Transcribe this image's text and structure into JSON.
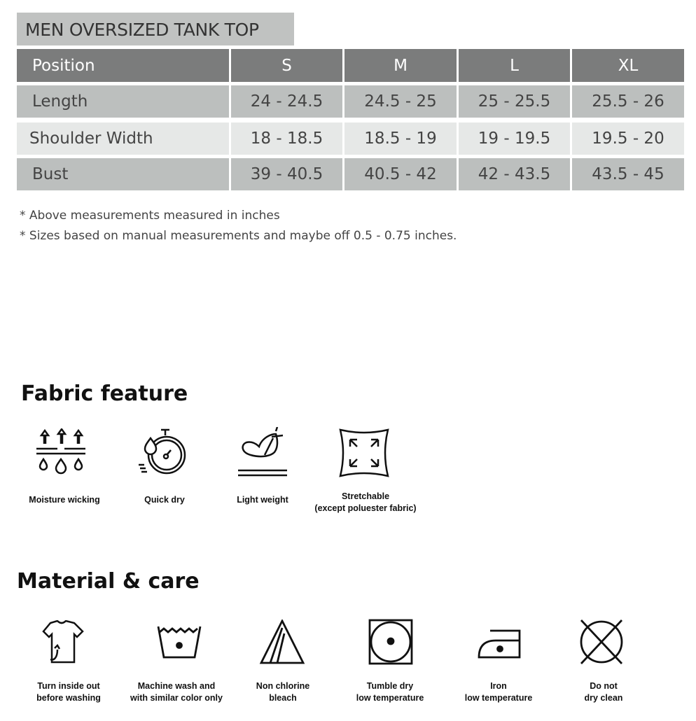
{
  "title": "MEN OVERSIZED TANK TOP",
  "table": {
    "headers": [
      "Position",
      "S",
      "M",
      "L",
      "XL"
    ],
    "rows": [
      {
        "label": "Length",
        "values": [
          "24 - 24.5",
          "24.5 - 25",
          "25 - 25.5",
          "25.5 - 26"
        ]
      },
      {
        "label": "Shoulder Width",
        "values": [
          "18 - 18.5",
          "18.5 - 19",
          "19 - 19.5",
          "19.5 - 20"
        ]
      },
      {
        "label": "Bust",
        "values": [
          "39 - 40.5",
          "40.5 - 42",
          "42 - 43.5",
          "43.5 - 45"
        ]
      }
    ]
  },
  "notes": [
    "* Above measurements measured in inches",
    "* Sizes based on manual measurements and maybe off 0.5 - 0.75 inches."
  ],
  "fabric": {
    "heading": "Fabric feature",
    "items": [
      {
        "icon": "moisture-wicking-icon",
        "lines": [
          "Moisture wicking"
        ]
      },
      {
        "icon": "quick-dry-icon",
        "lines": [
          "Quick dry"
        ]
      },
      {
        "icon": "light-weight-icon",
        "lines": [
          "Light weight"
        ]
      },
      {
        "icon": "stretchable-icon",
        "lines": [
          "Stretchable",
          "(except poluester fabric)"
        ]
      }
    ]
  },
  "care": {
    "heading": "Material & care",
    "items": [
      {
        "icon": "turn-inside-out-icon",
        "lines": [
          "Turn inside out",
          "before washing"
        ]
      },
      {
        "icon": "machine-wash-icon",
        "lines": [
          "Machine wash and",
          "with similar color only"
        ]
      },
      {
        "icon": "non-chlorine-bleach-icon",
        "lines": [
          "Non chlorine",
          "bleach"
        ]
      },
      {
        "icon": "tumble-dry-low-icon",
        "lines": [
          "Tumble dry",
          "low temperature"
        ]
      },
      {
        "icon": "iron-low-icon",
        "lines": [
          "Iron",
          "low temperature"
        ]
      },
      {
        "icon": "do-not-dry-clean-icon",
        "lines": [
          "Do not",
          "dry clean"
        ]
      }
    ]
  },
  "colors": {
    "title_bg": "#c0c2c1",
    "header_bg": "#7b7c7c",
    "row_dark": "#bcbfbe",
    "row_light": "#e6e8e7"
  }
}
